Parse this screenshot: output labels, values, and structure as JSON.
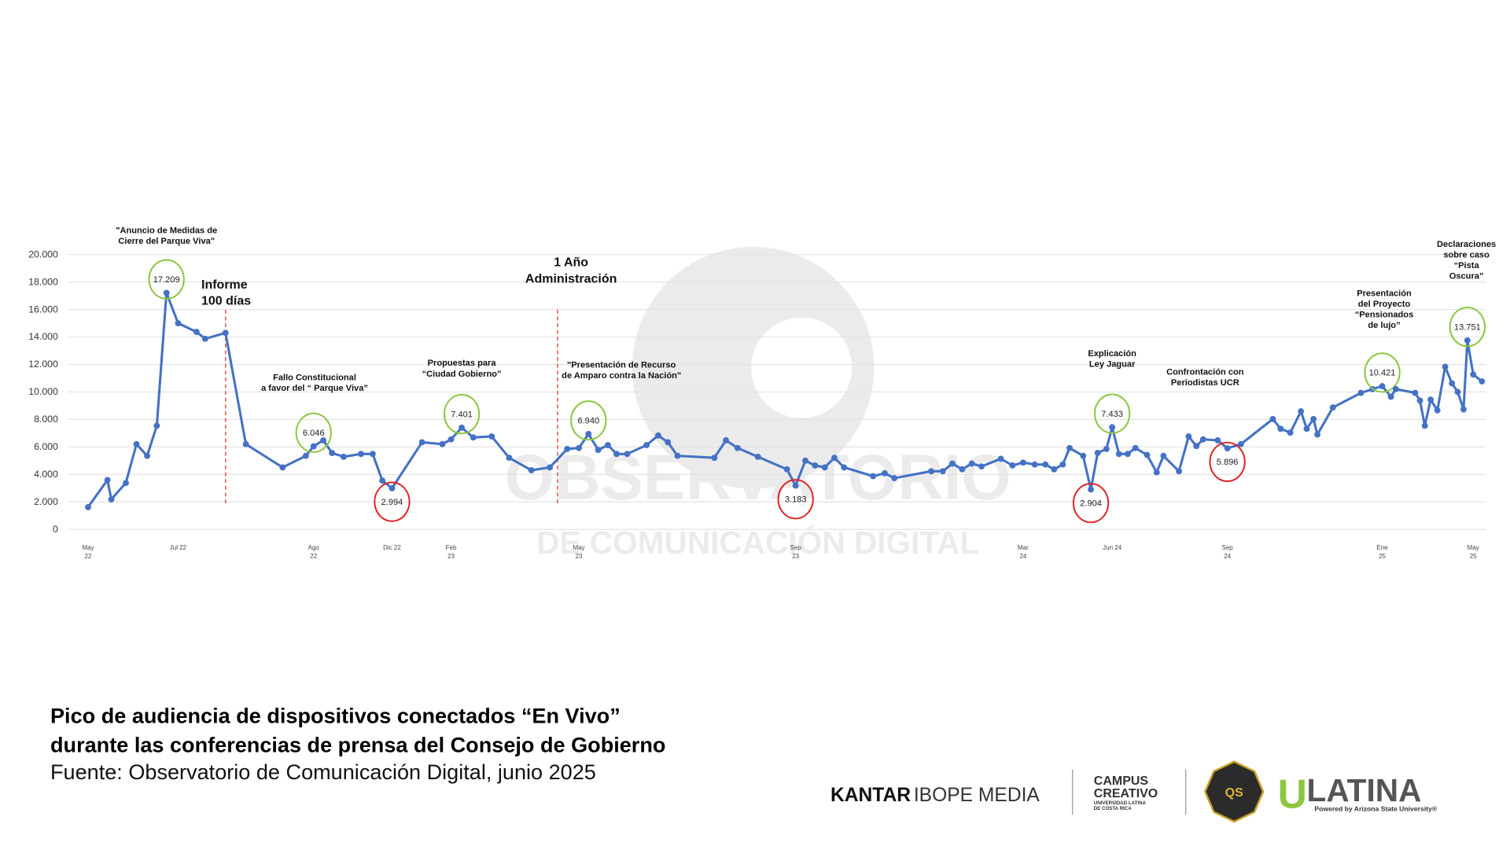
{
  "chart_data": {
    "type": "line",
    "categories": [
      "May 22",
      null,
      null,
      null,
      null,
      null,
      null,
      null,
      "Jul 22",
      null,
      null,
      null,
      null,
      null,
      null,
      "Ago 22",
      null,
      null,
      null,
      null,
      null,
      null,
      "Dic 22",
      null,
      null,
      "Feb 23",
      null,
      null,
      null,
      null,
      null,
      null,
      null,
      "May 23",
      null,
      null,
      null,
      null,
      null,
      null,
      null,
      null,
      null,
      null,
      null,
      null,
      null,
      null,
      "Sep 23",
      null,
      null,
      null,
      null,
      null,
      null,
      null,
      null,
      null,
      null,
      null,
      null,
      null,
      null,
      null,
      null,
      "Mar 24",
      null,
      null,
      null,
      null,
      null,
      null,
      null,
      null,
      null,
      "Jun 24",
      null,
      null,
      null,
      null,
      null,
      null,
      null,
      null,
      null,
      null,
      null,
      "Sep 24",
      null,
      null,
      null,
      null,
      null,
      null,
      null,
      null,
      null,
      null,
      null,
      "Ene 25",
      null,
      null,
      null,
      null,
      null,
      null,
      null,
      null,
      null,
      null,
      null,
      null,
      "May 25",
      null
    ],
    "values": [
      1620,
      3590,
      2180,
      3380,
      6200,
      5350,
      7540,
      17209,
      15000,
      14370,
      13870,
      14300,
      6200,
      4510,
      5350,
      6046,
      6480,
      5560,
      5280,
      5490,
      5490,
      3550,
      2994,
      6340,
      6200,
      6550,
      7401,
      6690,
      6760,
      5210,
      4300,
      4510,
      5850,
      5920,
      6940,
      5780,
      6130,
      5490,
      5490,
      6130,
      6830,
      6340,
      5350,
      5210,
      6480,
      5920,
      5280,
      4370,
      3183,
      5000,
      4650,
      4510,
      5210,
      4510,
      3870,
      4080,
      3730,
      4230,
      4230,
      4790,
      4370,
      4790,
      4580,
      5140,
      4650,
      4860,
      4720,
      4720,
      4370,
      4720,
      5920,
      5350,
      2904,
      5560,
      5850,
      7433,
      5490,
      5490,
      5920,
      5420,
      4150,
      5350,
      4230,
      6760,
      6060,
      6550,
      6480,
      5896,
      6200,
      8030,
      7320,
      7040,
      8590,
      7320,
      8030,
      6900,
      8870,
      9930,
      10210,
      10421,
      9650,
      10210,
      9930,
      9370,
      7540,
      9440,
      8660,
      11830,
      10630,
      10000,
      8730,
      13751,
      11270,
      10770
    ],
    "value_labels": [
      null,
      null,
      null,
      null,
      null,
      null,
      null,
      "17.209",
      null,
      null,
      null,
      null,
      null,
      null,
      null,
      "6.046",
      null,
      null,
      null,
      null,
      null,
      null,
      "2.994",
      null,
      null,
      null,
      "7.401",
      null,
      null,
      null,
      null,
      null,
      null,
      null,
      "6.940",
      null,
      null,
      null,
      null,
      null,
      null,
      null,
      null,
      null,
      null,
      null,
      null,
      null,
      "3.183",
      null,
      null,
      null,
      null,
      null,
      null,
      null,
      null,
      null,
      null,
      null,
      null,
      null,
      null,
      null,
      null,
      null,
      null,
      null,
      null,
      null,
      null,
      null,
      "2.904",
      null,
      null,
      "7.433",
      null,
      null,
      null,
      null,
      null,
      null,
      null,
      null,
      null,
      null,
      null,
      "5.896",
      null,
      null,
      null,
      null,
      null,
      null,
      null,
      null,
      null,
      null,
      null,
      "10.421",
      null,
      null,
      null,
      null,
      null,
      null,
      null,
      null,
      null,
      null,
      null,
      "13.751",
      null,
      null
    ],
    "color": "#4472c4",
    "peak_color": "#8dc63f",
    "low_color": "#e02424",
    "event_line_color": "#d9534f",
    "ylim": [
      0,
      20000
    ],
    "yticks": [
      0,
      {
        "value": 2000,
        "label": "2.000"
      },
      {
        "value": 4000,
        "label": "4.000"
      },
      {
        "value": 6000,
        "label": "6.000"
      },
      {
        "value": 8000,
        "label": "8.000"
      },
      {
        "value": 10000,
        "label": "10.000"
      },
      {
        "value": 12000,
        "label": "12.000"
      },
      {
        "value": 14000,
        "label": "14.000"
      },
      {
        "value": 16000,
        "label": "16.000"
      },
      {
        "value": 18000,
        "label": "18.000"
      },
      {
        "value": 20000,
        "label": "20.000"
      }
    ],
    "grid": true,
    "annotations": [
      {
        "text": "\"Anuncio de Medidas de\nCierre del Parque Viva\""
      },
      {
        "text": "Informe\n100 días"
      },
      {
        "text": "Fallo Constitucional\na favor del “ Parque Viva”"
      },
      {
        "text": "Propuestas para\n“Ciudad Gobierno”"
      },
      {
        "text": "1 Año\nAdministración"
      },
      {
        "text": "\"Presentación de Recurso\nde Amparo contra la Nación\""
      },
      {
        "text": "Explicación\nLey Jaguar"
      },
      {
        "text": "Confrontación con\nPeriodistas UCR"
      },
      {
        "text": "Presentación\ndel Proyecto\n“Pensionados\nde lujo”"
      },
      {
        "text": "Declaraciones\nsobre caso\n“Pista Oscura”"
      }
    ]
  },
  "watermark": {
    "line1": "OBSERVATORIO",
    "line2": "DE COMUNICACIÓN DIGITAL"
  },
  "footer": {
    "title": "Pico de audiencia de dispositivos conectados “En Vivo”\ndurante las conferencias de prensa del Consejo de Gobierno",
    "source": "Fuente: Observatorio de Comunicación Digital, junio 2025"
  },
  "logos": {
    "kantar": "KANTAR",
    "ibope": "IBOPE MEDIA",
    "campus": "CAMPUS\nCREATIVO",
    "campus_sub": "UNIVERSIDAD LATINA\nDE COSTA RICA",
    "qs": "QS",
    "ulatina_u": "U",
    "ulatina": "LATINA",
    "ulatina_sub": "Powered by Arizona State University®"
  }
}
